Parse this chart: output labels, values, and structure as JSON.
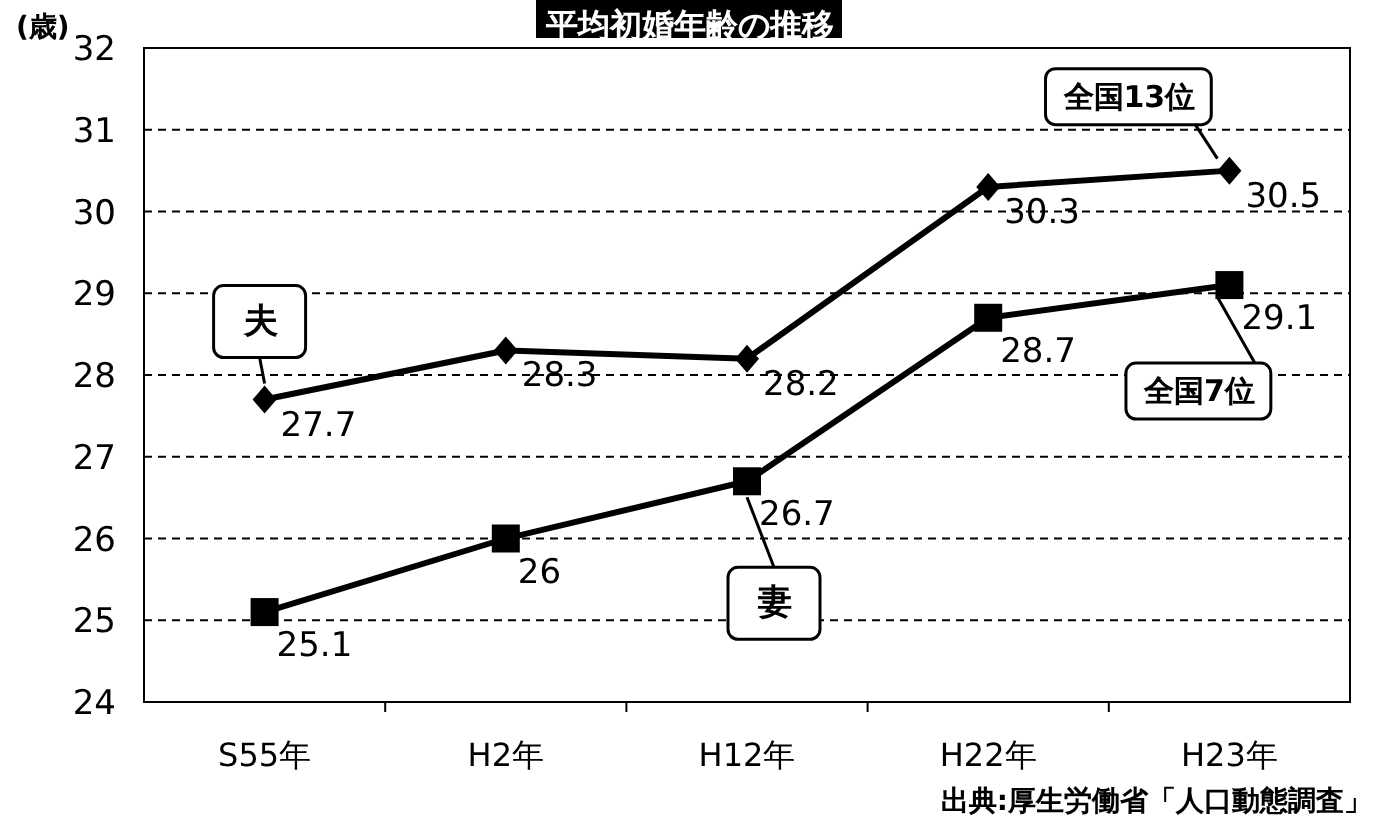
{
  "chart_data": {
    "type": "line",
    "title": "平均初婚年齢の推移",
    "ylabel": "(歳)",
    "categories": [
      "S55年",
      "H2年",
      "H12年",
      "H22年",
      "H23年"
    ],
    "series": [
      {
        "name": "夫",
        "color": "#000000",
        "marker": "diamond",
        "values": [
          27.7,
          28.3,
          28.2,
          30.3,
          30.5
        ]
      },
      {
        "name": "妻",
        "color": "#000000",
        "marker": "square",
        "values": [
          25.1,
          26,
          26.7,
          28.7,
          29.1
        ]
      }
    ],
    "ylim": [
      24,
      32
    ],
    "yticks": [
      24,
      25,
      26,
      27,
      28,
      29,
      30,
      31,
      32
    ],
    "grid": "y",
    "data_labels": true,
    "annotations": [
      {
        "text": "全国13位",
        "x": "H23年",
        "y": 30.5
      },
      {
        "text": "全国7位",
        "x": "H23年",
        "y": 29.1
      },
      "出典:厚生労働省「人口動態調査」"
    ]
  }
}
